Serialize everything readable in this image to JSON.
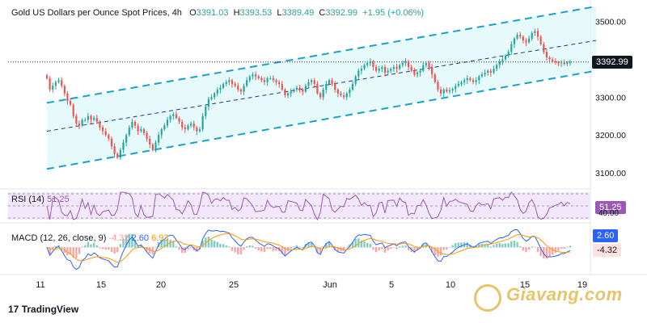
{
  "header": {
    "symbol": "Gold US Dollars per Ounce Spot Prices, 4h",
    "open_label": "O",
    "open": "3391.03",
    "high_label": "H",
    "high": "3393.53",
    "low_label": "L",
    "low": "3389.49",
    "close_label": "C",
    "close": "3392.99",
    "change": "+1.95 (+0.06%)"
  },
  "price_tag": "3392.99",
  "rsi": {
    "label": "RSI (14)",
    "value": "51.25",
    "tag": "51.25",
    "hidden_level": "40.00"
  },
  "macd": {
    "label": "MACD (12, 26, close, 9)",
    "hist": "-4.32",
    "macd": "2.60",
    "signal": "6.93",
    "tag_macd": "2.60",
    "tag_hist": "-4.32"
  },
  "brand": "TradingView",
  "watermark": "Giavang.com",
  "colors": {
    "up": "#26a69a",
    "down": "#ef5350",
    "channel": "#17a2c8",
    "rsi": "#9b59b6",
    "macd": "#2962ff",
    "signal": "#ff9800"
  },
  "chart_data": {
    "type": "candlestick",
    "timeframe": "4h",
    "y_ticks": [
      3100,
      3200,
      3300,
      3400,
      3500
    ],
    "y_tick_labels": [
      "3100.00",
      "3200.00",
      "3300.00",
      "3400.00",
      "3500.00"
    ],
    "ylim": [
      3070,
      3540
    ],
    "x_tick_labels": [
      "11",
      "15",
      "20",
      "25",
      "Jun",
      "5",
      "10",
      "15",
      "19"
    ],
    "last_price": 3392.99,
    "channel": {
      "upper_start": 3285,
      "upper_end": 3540,
      "mid_start": 3210,
      "mid_end": 3450,
      "lower_start": 3110,
      "lower_end": 3370
    },
    "closes": [
      3350,
      3320,
      3330,
      3340,
      3345,
      3330,
      3310,
      3290,
      3280,
      3250,
      3230,
      3225,
      3240,
      3240,
      3250,
      3240,
      3245,
      3235,
      3220,
      3210,
      3200,
      3190,
      3170,
      3150,
      3140,
      3160,
      3180,
      3200,
      3220,
      3235,
      3225,
      3210,
      3215,
      3205,
      3190,
      3175,
      3160,
      3180,
      3200,
      3215,
      3225,
      3240,
      3250,
      3255,
      3245,
      3235,
      3220,
      3215,
      3225,
      3230,
      3220,
      3210,
      3215,
      3250,
      3275,
      3295,
      3300,
      3310,
      3320,
      3325,
      3335,
      3340,
      3345,
      3335,
      3330,
      3320,
      3315,
      3330,
      3345,
      3355,
      3360,
      3355,
      3350,
      3345,
      3340,
      3350,
      3350,
      3345,
      3340,
      3335,
      3320,
      3305,
      3310,
      3315,
      3320,
      3325,
      3320,
      3315,
      3330,
      3340,
      3345,
      3335,
      3310,
      3300,
      3320,
      3335,
      3345,
      3335,
      3320,
      3310,
      3305,
      3300,
      3310,
      3320,
      3335,
      3355,
      3370,
      3375,
      3385,
      3390,
      3395,
      3380,
      3370,
      3375,
      3380,
      3365,
      3370,
      3375,
      3380,
      3375,
      3385,
      3390,
      3395,
      3380,
      3370,
      3360,
      3365,
      3370,
      3385,
      3390,
      3380,
      3360,
      3340,
      3320,
      3310,
      3320,
      3315,
      3318,
      3322,
      3330,
      3335,
      3340,
      3345,
      3350,
      3345,
      3340,
      3345,
      3355,
      3360,
      3365,
      3370,
      3365,
      3375,
      3385,
      3395,
      3400,
      3410,
      3420,
      3440,
      3455,
      3465,
      3460,
      3450,
      3445,
      3455,
      3470,
      3475,
      3460,
      3440,
      3420,
      3405,
      3400,
      3395,
      3392,
      3390,
      3392,
      3388,
      3391,
      3393
    ]
  }
}
